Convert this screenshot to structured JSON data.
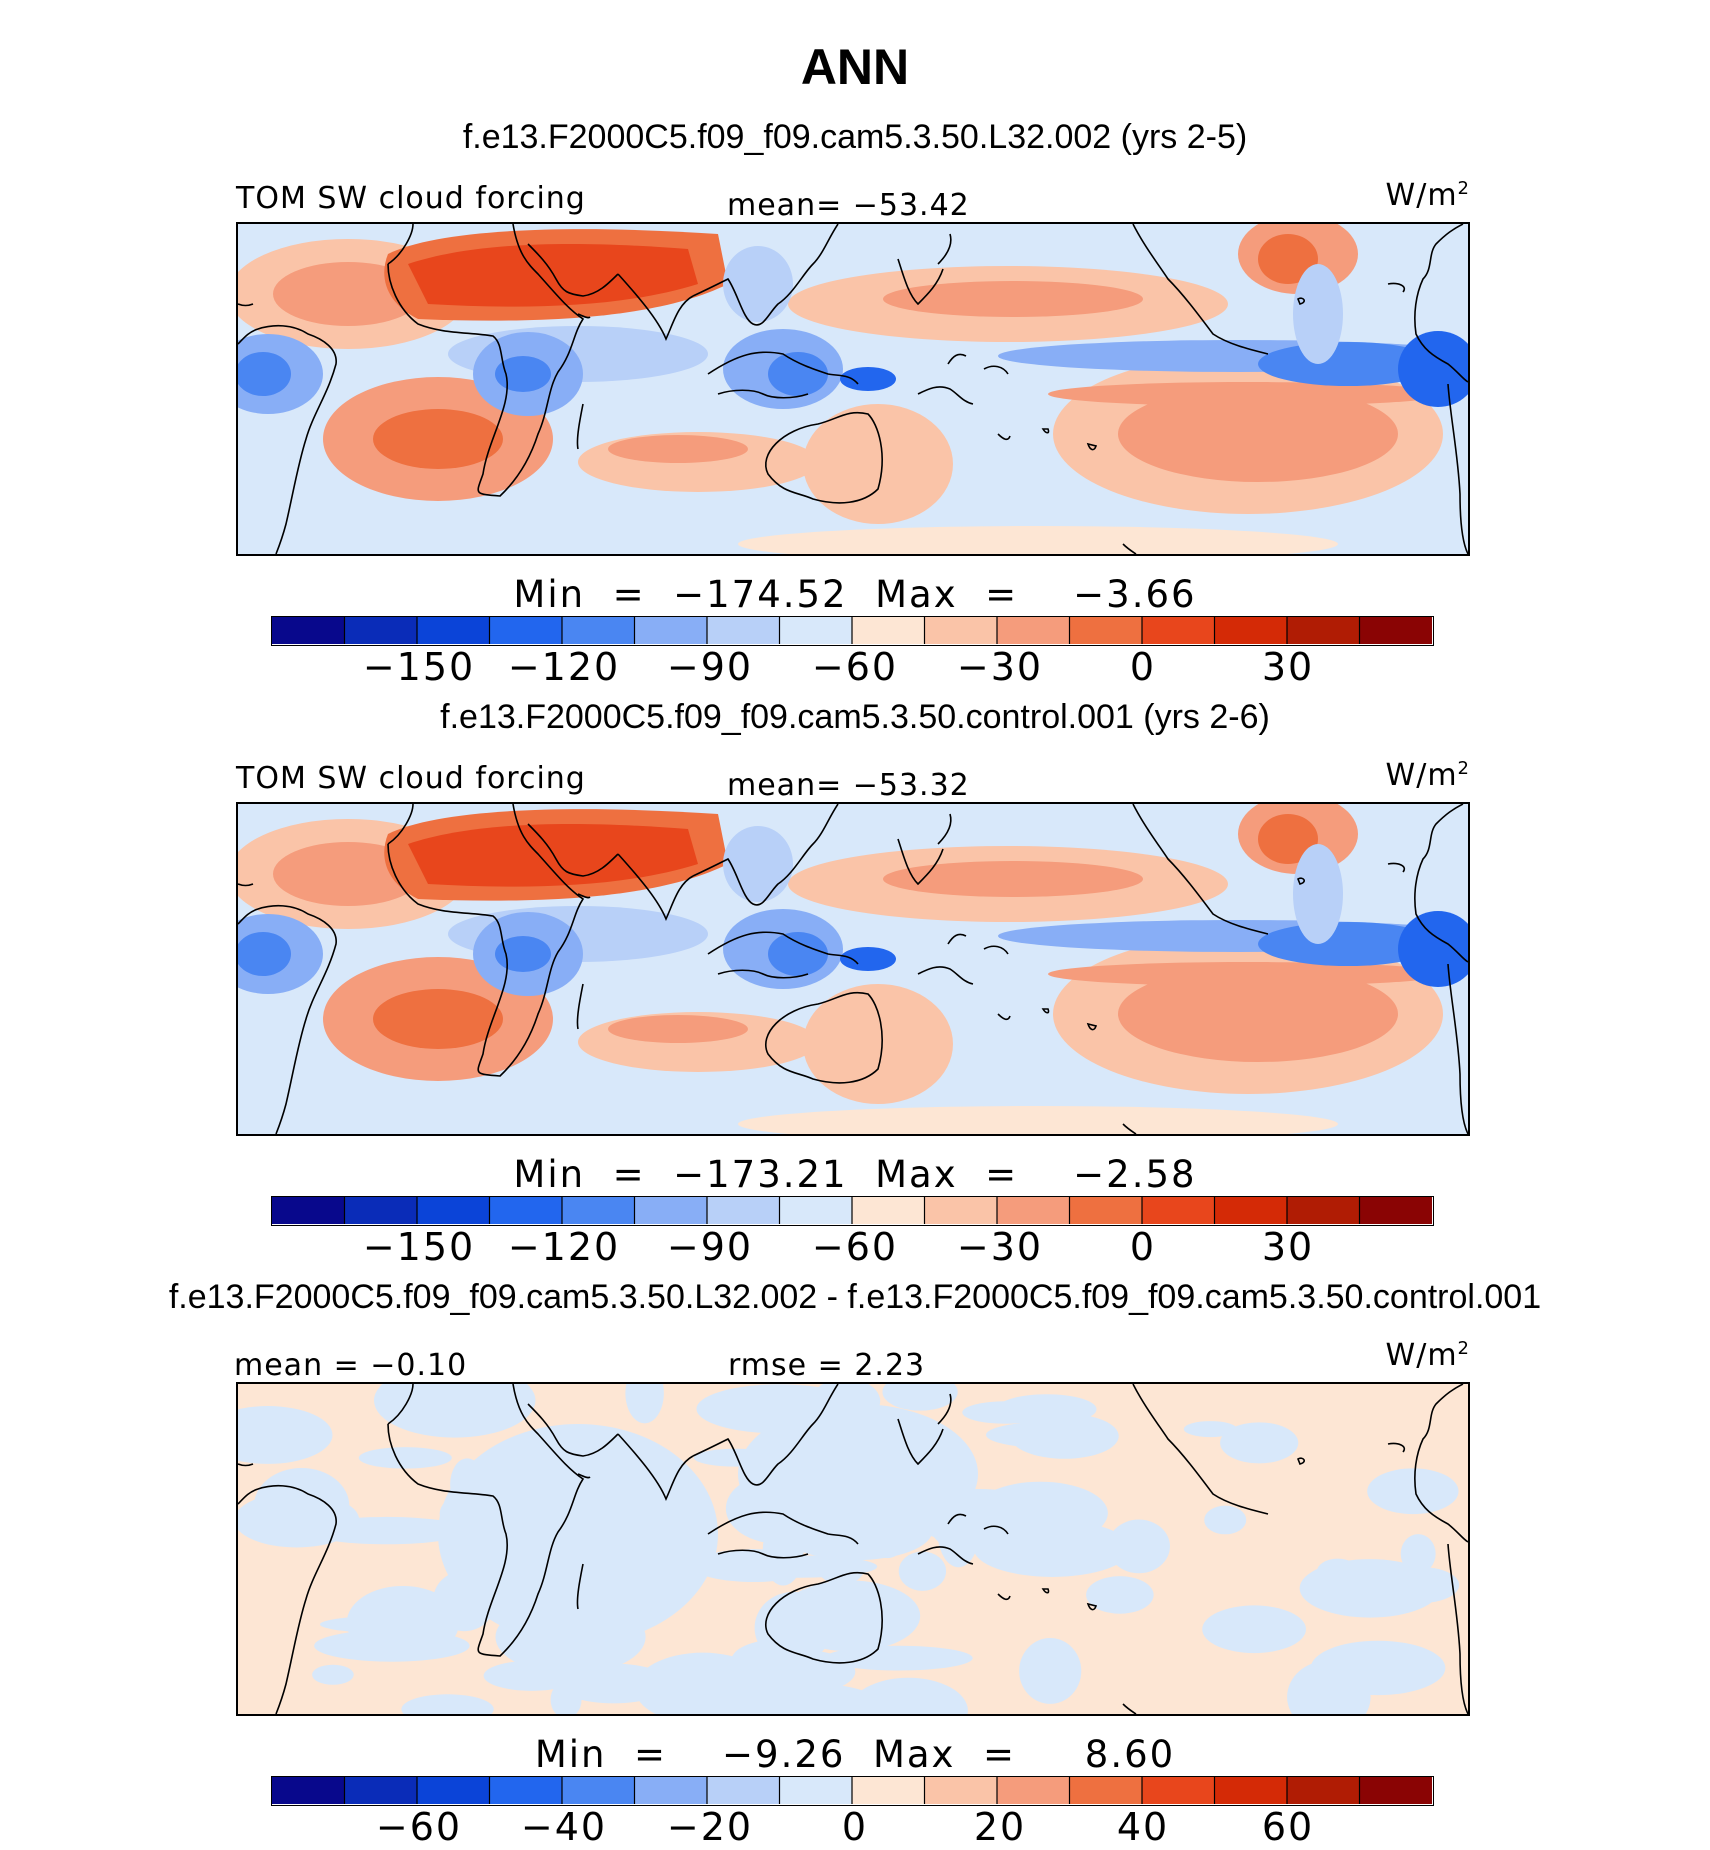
{
  "title": "ANN",
  "colormap": [
    "#08088c",
    "#0a2cb8",
    "#0b44d8",
    "#2266ee",
    "#4a86f2",
    "#88aef6",
    "#b8d0f8",
    "#d8e8fa",
    "#fde6d4",
    "#fac4a8",
    "#f59c7c",
    "#ee7040",
    "#e8461c",
    "#d42a06",
    "#b01c04",
    "#8a0404"
  ],
  "map_colors": {
    "ocean_land": "#fde6d4",
    "coast": "#000000"
  },
  "panels": [
    {
      "case": "f.e13.F2000C5.f09_f09.cam5.3.50.L32.002 (yrs 2-5)",
      "left_label": "TOM SW cloud forcing",
      "center_label": "mean=  −53.42",
      "units": "W/m",
      "units_sup": "2",
      "minmax": "Min  =  −174.52  Max  =    −3.66",
      "ticks": [
        "−150",
        "−120",
        "−90",
        "−60",
        "−30",
        "0",
        "30"
      ],
      "kind": "field"
    },
    {
      "case": "f.e13.F2000C5.f09_f09.cam5.3.50.control.001 (yrs 2-6)",
      "left_label": "TOM SW cloud forcing",
      "center_label": "mean=  −53.32",
      "units": "W/m",
      "units_sup": "2",
      "minmax": "Min  =  −173.21  Max  =    −2.58",
      "ticks": [
        "−150",
        "−120",
        "−90",
        "−60",
        "−30",
        "0",
        "30"
      ],
      "kind": "field"
    },
    {
      "case": "f.e13.F2000C5.f09_f09.cam5.3.50.L32.002 - f.e13.F2000C5.f09_f09.cam5.3.50.control.001",
      "left_label": "mean  =   −0.10",
      "center_label": "rmse  =    2.23",
      "units": "W/m",
      "units_sup": "2",
      "minmax": "Min  =    −9.26  Max  =     8.60",
      "ticks": [
        "−60",
        "−40",
        "−20",
        "0",
        "20",
        "40",
        "60"
      ],
      "kind": "diff"
    }
  ]
}
